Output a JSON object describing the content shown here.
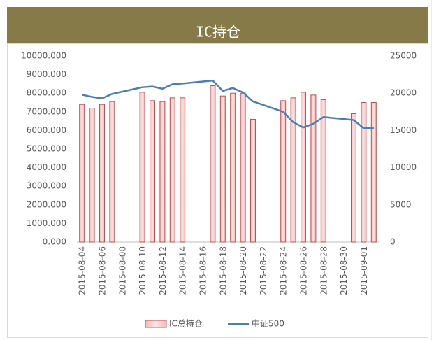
{
  "chart_data": {
    "type": "bar_line",
    "title": "IC持仓",
    "categories": [
      "2015-08-04",
      null,
      "2015-08-06",
      null,
      "2015-08-08",
      null,
      "2015-08-10",
      null,
      "2015-08-12",
      null,
      "2015-08-14",
      null,
      "2015-08-16",
      null,
      "2015-08-18",
      null,
      "2015-08-20",
      null,
      "2015-08-22",
      null,
      "2015-08-24",
      null,
      "2015-08-26",
      null,
      "2015-08-28",
      null,
      "2015-08-30",
      null,
      "2015-09-01",
      null
    ],
    "series": [
      {
        "name": "IC总持仓",
        "type": "bar",
        "axis": "y",
        "color": "#c0504d",
        "values": [
          7400,
          7200,
          7400,
          7550,
          null,
          null,
          8050,
          7600,
          7550,
          7750,
          7750,
          null,
          null,
          8400,
          7850,
          8000,
          8000,
          6600,
          null,
          null,
          7600,
          7750,
          8050,
          7900,
          7650,
          null,
          null,
          6900,
          7500,
          7500
        ]
      },
      {
        "name": "中证500",
        "type": "line",
        "axis": "y2",
        "color": "#4a7ebb",
        "values": [
          19800,
          19500,
          19300,
          19900,
          null,
          null,
          20800,
          20900,
          20600,
          21200,
          21300,
          null,
          null,
          21700,
          20300,
          20700,
          20100,
          18900,
          null,
          null,
          17500,
          16100,
          15400,
          15900,
          16800,
          null,
          null,
          16400,
          15300,
          15300
        ]
      }
    ],
    "connect_gaps": true,
    "ylim": [
      0,
      10000
    ],
    "yticks": [
      {
        "value": 0,
        "label": "0.000"
      },
      {
        "value": 1000,
        "label": "1000.000"
      },
      {
        "value": 2000,
        "label": "2000.000"
      },
      {
        "value": 3000,
        "label": "3000.000"
      },
      {
        "value": 4000,
        "label": "4000.000"
      },
      {
        "value": 5000,
        "label": "5000.000"
      },
      {
        "value": 6000,
        "label": "6000.000"
      },
      {
        "value": 7000,
        "label": "7000.000"
      },
      {
        "value": 8000,
        "label": "8000.000"
      },
      {
        "value": 9000,
        "label": "9000.000"
      },
      {
        "value": 10000,
        "label": "10000.000"
      }
    ],
    "y2lim": [
      0,
      25000
    ],
    "y2ticks": [
      0,
      5000,
      10000,
      15000,
      20000,
      25000
    ],
    "grid": false,
    "legend": "bottom"
  }
}
